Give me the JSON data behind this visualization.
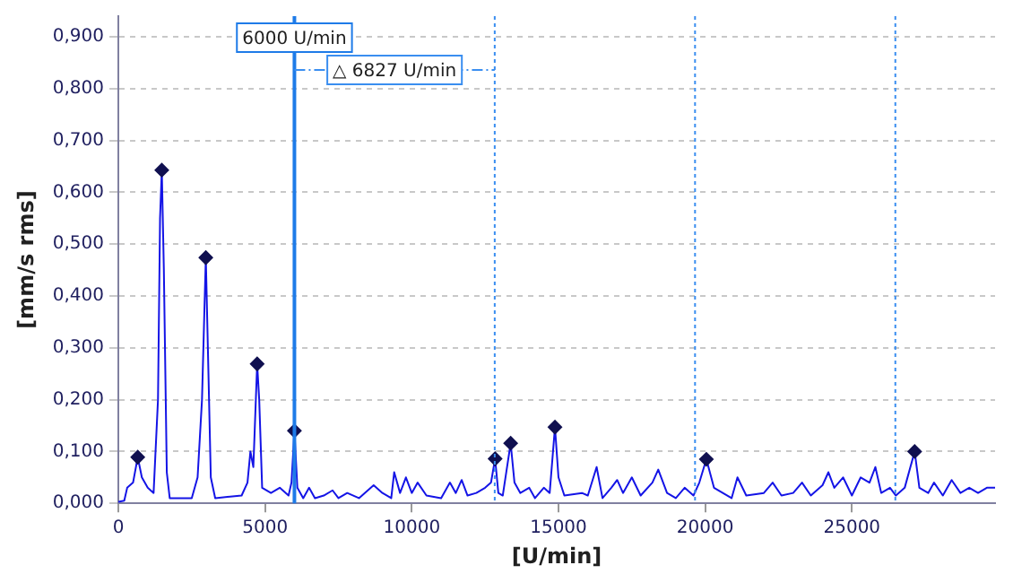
{
  "chart_data": {
    "type": "line",
    "xlabel": "[U/min]",
    "ylabel": "[mm/s rms]",
    "xlim": [
      0,
      29880
    ],
    "xticks": [
      0,
      5000,
      10000,
      15000,
      20000,
      25000
    ],
    "ylim": [
      0,
      0.94
    ],
    "yticks": [
      {
        "value": 0,
        "label": "0,000"
      },
      {
        "value": 0.1,
        "label": "0,100"
      },
      {
        "value": 0.2,
        "label": "0,200"
      },
      {
        "value": 0.3,
        "label": "0,300"
      },
      {
        "value": 0.4,
        "label": "0,400"
      },
      {
        "value": 0.5,
        "label": "0,500"
      },
      {
        "value": 0.6,
        "label": "0,600"
      },
      {
        "value": 0.7,
        "label": "0,700"
      },
      {
        "value": 0.8,
        "label": "0,800"
      },
      {
        "value": 0.9,
        "label": "0,900"
      }
    ],
    "grid": "y",
    "legend": false,
    "series": [
      {
        "type": "line",
        "color": "#1414e6",
        "marker": "none",
        "x": [
          0,
          200,
          300,
          500,
          660,
          800,
          1000,
          1200,
          1350,
          1420,
          1480,
          1550,
          1650,
          1750,
          2500,
          2700,
          2850,
          2980,
          3050,
          3150,
          3300,
          4200,
          4400,
          4500,
          4600,
          4730,
          4800,
          4900,
          5200,
          5500,
          5800,
          5900,
          6000,
          6100,
          6300,
          6500,
          6700,
          7000,
          7300,
          7500,
          7800,
          8200,
          8700,
          9000,
          9300,
          9400,
          9600,
          9800,
          10000,
          10200,
          10500,
          11000,
          11300,
          11500,
          11700,
          11900,
          12200,
          12500,
          12700,
          12840,
          12950,
          13100,
          13370,
          13500,
          13700,
          14000,
          14200,
          14500,
          14700,
          14880,
          15000,
          15200,
          15800,
          16000,
          16300,
          16500,
          16800,
          17000,
          17200,
          17500,
          17800,
          18200,
          18400,
          18700,
          19000,
          19300,
          19600,
          19800,
          20040,
          20300,
          20600,
          20900,
          21100,
          21400,
          22000,
          22300,
          22600,
          23000,
          23300,
          23600,
          24000,
          24200,
          24400,
          24700,
          25000,
          25300,
          25600,
          25800,
          26000,
          26300,
          26500,
          26800,
          27140,
          27300,
          27600,
          27800,
          28100,
          28400,
          28700,
          29000,
          29300,
          29600,
          29880
        ],
        "values": [
          0.003,
          0.005,
          0.03,
          0.04,
          0.089,
          0.05,
          0.03,
          0.02,
          0.2,
          0.55,
          0.643,
          0.45,
          0.06,
          0.01,
          0.01,
          0.05,
          0.2,
          0.474,
          0.3,
          0.05,
          0.01,
          0.015,
          0.04,
          0.1,
          0.07,
          0.269,
          0.2,
          0.03,
          0.02,
          0.03,
          0.015,
          0.04,
          0.14,
          0.03,
          0.01,
          0.03,
          0.01,
          0.015,
          0.025,
          0.01,
          0.02,
          0.01,
          0.035,
          0.02,
          0.01,
          0.06,
          0.02,
          0.05,
          0.02,
          0.04,
          0.015,
          0.01,
          0.04,
          0.02,
          0.045,
          0.015,
          0.02,
          0.03,
          0.04,
          0.086,
          0.02,
          0.015,
          0.116,
          0.04,
          0.02,
          0.03,
          0.01,
          0.03,
          0.02,
          0.147,
          0.05,
          0.015,
          0.02,
          0.015,
          0.07,
          0.01,
          0.03,
          0.045,
          0.02,
          0.05,
          0.015,
          0.04,
          0.065,
          0.02,
          0.01,
          0.03,
          0.015,
          0.04,
          0.085,
          0.03,
          0.02,
          0.01,
          0.05,
          0.015,
          0.02,
          0.04,
          0.015,
          0.02,
          0.04,
          0.015,
          0.035,
          0.06,
          0.03,
          0.05,
          0.015,
          0.05,
          0.04,
          0.07,
          0.02,
          0.03,
          0.015,
          0.03,
          0.1,
          0.03,
          0.02,
          0.04,
          0.015,
          0.045,
          0.02,
          0.03,
          0.02,
          0.03,
          0.03
        ]
      },
      {
        "type": "scatter",
        "color": "#101050",
        "marker": "diamond",
        "x": [
          660,
          1480,
          2980,
          4730,
          6000,
          12840,
          13370,
          14880,
          20040,
          27140
        ],
        "values": [
          0.089,
          0.643,
          0.474,
          0.269,
          0.14,
          0.086,
          0.116,
          0.147,
          0.085,
          0.1
        ]
      }
    ],
    "ref_lines": [
      {
        "axis": "x",
        "value": 6000,
        "label": "6000 U/min",
        "color": "#1e7be8",
        "line_style": "solid"
      },
      {
        "axis": "x",
        "value": 12827,
        "label": "△ 6827 U/min",
        "color": "#3a8ef0",
        "line_style": "dotted"
      },
      {
        "axis": "x",
        "value": 19654,
        "color": "#3a8ef0",
        "line_style": "dotted"
      },
      {
        "axis": "x",
        "value": 26481,
        "color": "#3a8ef0",
        "line_style": "dotted"
      }
    ]
  }
}
